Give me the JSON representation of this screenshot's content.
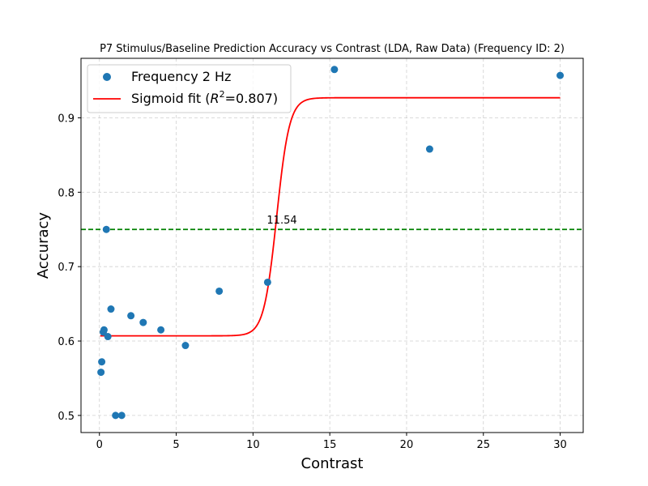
{
  "chart_data": {
    "type": "scatter",
    "title": "P7 Stimulus/Baseline Prediction Accuracy vs Contrast (LDA, Raw Data) (Frequency ID: 2)",
    "xlabel": "Contrast",
    "ylabel": "Accuracy",
    "xlim": [
      -1.2,
      31.5
    ],
    "ylim": [
      0.477,
      0.98
    ],
    "xticks": [
      0,
      5,
      10,
      15,
      20,
      25,
      30
    ],
    "yticks": [
      0.5,
      0.6,
      0.7,
      0.8,
      0.9
    ],
    "ytick_labels": [
      "0.5",
      "0.6",
      "0.7",
      "0.8",
      "0.9"
    ],
    "grid": true,
    "legend_position": "top-left",
    "series": [
      {
        "name": "Frequency 2 Hz",
        "kind": "scatter",
        "color": "#1f77b4",
        "x": [
          0.1,
          0.15,
          0.25,
          0.3,
          0.45,
          0.55,
          0.75,
          1.05,
          1.45,
          2.05,
          2.85,
          4.0,
          5.6,
          7.8,
          10.95,
          15.3,
          21.5,
          30.0
        ],
        "y": [
          0.558,
          0.572,
          0.612,
          0.615,
          0.75,
          0.606,
          0.643,
          0.5,
          0.5,
          0.634,
          0.625,
          0.615,
          0.594,
          0.667,
          0.679,
          0.965,
          0.858,
          0.957
        ]
      },
      {
        "name_prefix": "Sigmoid fit (",
        "name_r": "R",
        "name_sup": "2",
        "name_suffix": "=0.807)",
        "kind": "line",
        "color": "#ff0000",
        "x_range": [
          0.05,
          30.0
        ],
        "sigmoid": {
          "lower": 0.607,
          "upper": 0.927,
          "midpoint": 11.54,
          "slope": 2.4
        }
      }
    ],
    "hline": {
      "y": 0.75,
      "color": "#008000",
      "style": "dashed"
    },
    "annotations": [
      {
        "text": "11.54",
        "x": 10.9,
        "y": 0.758
      }
    ]
  }
}
